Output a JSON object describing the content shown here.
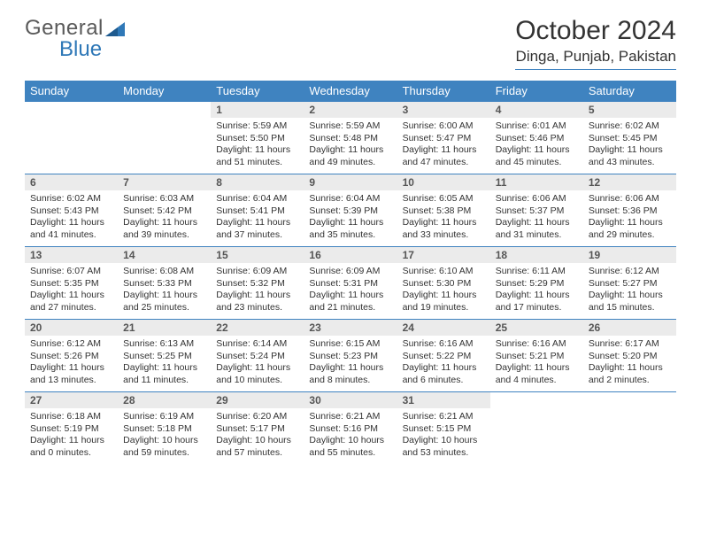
{
  "brand": {
    "part1": "General",
    "part2": "Blue"
  },
  "title": "October 2024",
  "location": "Dinga, Punjab, Pakistan",
  "colors": {
    "accent": "#3f83c0",
    "daynum_bg": "#ebebeb",
    "text": "#333333",
    "muted": "#5a5a5a"
  },
  "weekdays": [
    "Sunday",
    "Monday",
    "Tuesday",
    "Wednesday",
    "Thursday",
    "Friday",
    "Saturday"
  ],
  "calendar": {
    "first_weekday_index": 2,
    "days": [
      {
        "n": 1,
        "sunrise": "5:59 AM",
        "sunset": "5:50 PM",
        "daylight": "11 hours and 51 minutes."
      },
      {
        "n": 2,
        "sunrise": "5:59 AM",
        "sunset": "5:48 PM",
        "daylight": "11 hours and 49 minutes."
      },
      {
        "n": 3,
        "sunrise": "6:00 AM",
        "sunset": "5:47 PM",
        "daylight": "11 hours and 47 minutes."
      },
      {
        "n": 4,
        "sunrise": "6:01 AM",
        "sunset": "5:46 PM",
        "daylight": "11 hours and 45 minutes."
      },
      {
        "n": 5,
        "sunrise": "6:02 AM",
        "sunset": "5:45 PM",
        "daylight": "11 hours and 43 minutes."
      },
      {
        "n": 6,
        "sunrise": "6:02 AM",
        "sunset": "5:43 PM",
        "daylight": "11 hours and 41 minutes."
      },
      {
        "n": 7,
        "sunrise": "6:03 AM",
        "sunset": "5:42 PM",
        "daylight": "11 hours and 39 minutes."
      },
      {
        "n": 8,
        "sunrise": "6:04 AM",
        "sunset": "5:41 PM",
        "daylight": "11 hours and 37 minutes."
      },
      {
        "n": 9,
        "sunrise": "6:04 AM",
        "sunset": "5:39 PM",
        "daylight": "11 hours and 35 minutes."
      },
      {
        "n": 10,
        "sunrise": "6:05 AM",
        "sunset": "5:38 PM",
        "daylight": "11 hours and 33 minutes."
      },
      {
        "n": 11,
        "sunrise": "6:06 AM",
        "sunset": "5:37 PM",
        "daylight": "11 hours and 31 minutes."
      },
      {
        "n": 12,
        "sunrise": "6:06 AM",
        "sunset": "5:36 PM",
        "daylight": "11 hours and 29 minutes."
      },
      {
        "n": 13,
        "sunrise": "6:07 AM",
        "sunset": "5:35 PM",
        "daylight": "11 hours and 27 minutes."
      },
      {
        "n": 14,
        "sunrise": "6:08 AM",
        "sunset": "5:33 PM",
        "daylight": "11 hours and 25 minutes."
      },
      {
        "n": 15,
        "sunrise": "6:09 AM",
        "sunset": "5:32 PM",
        "daylight": "11 hours and 23 minutes."
      },
      {
        "n": 16,
        "sunrise": "6:09 AM",
        "sunset": "5:31 PM",
        "daylight": "11 hours and 21 minutes."
      },
      {
        "n": 17,
        "sunrise": "6:10 AM",
        "sunset": "5:30 PM",
        "daylight": "11 hours and 19 minutes."
      },
      {
        "n": 18,
        "sunrise": "6:11 AM",
        "sunset": "5:29 PM",
        "daylight": "11 hours and 17 minutes."
      },
      {
        "n": 19,
        "sunrise": "6:12 AM",
        "sunset": "5:27 PM",
        "daylight": "11 hours and 15 minutes."
      },
      {
        "n": 20,
        "sunrise": "6:12 AM",
        "sunset": "5:26 PM",
        "daylight": "11 hours and 13 minutes."
      },
      {
        "n": 21,
        "sunrise": "6:13 AM",
        "sunset": "5:25 PM",
        "daylight": "11 hours and 11 minutes."
      },
      {
        "n": 22,
        "sunrise": "6:14 AM",
        "sunset": "5:24 PM",
        "daylight": "11 hours and 10 minutes."
      },
      {
        "n": 23,
        "sunrise": "6:15 AM",
        "sunset": "5:23 PM",
        "daylight": "11 hours and 8 minutes."
      },
      {
        "n": 24,
        "sunrise": "6:16 AM",
        "sunset": "5:22 PM",
        "daylight": "11 hours and 6 minutes."
      },
      {
        "n": 25,
        "sunrise": "6:16 AM",
        "sunset": "5:21 PM",
        "daylight": "11 hours and 4 minutes."
      },
      {
        "n": 26,
        "sunrise": "6:17 AM",
        "sunset": "5:20 PM",
        "daylight": "11 hours and 2 minutes."
      },
      {
        "n": 27,
        "sunrise": "6:18 AM",
        "sunset": "5:19 PM",
        "daylight": "11 hours and 0 minutes."
      },
      {
        "n": 28,
        "sunrise": "6:19 AM",
        "sunset": "5:18 PM",
        "daylight": "10 hours and 59 minutes."
      },
      {
        "n": 29,
        "sunrise": "6:20 AM",
        "sunset": "5:17 PM",
        "daylight": "10 hours and 57 minutes."
      },
      {
        "n": 30,
        "sunrise": "6:21 AM",
        "sunset": "5:16 PM",
        "daylight": "10 hours and 55 minutes."
      },
      {
        "n": 31,
        "sunrise": "6:21 AM",
        "sunset": "5:15 PM",
        "daylight": "10 hours and 53 minutes."
      }
    ]
  },
  "labels": {
    "sunrise_prefix": "Sunrise: ",
    "sunset_prefix": "Sunset: ",
    "daylight_prefix": "Daylight: "
  }
}
